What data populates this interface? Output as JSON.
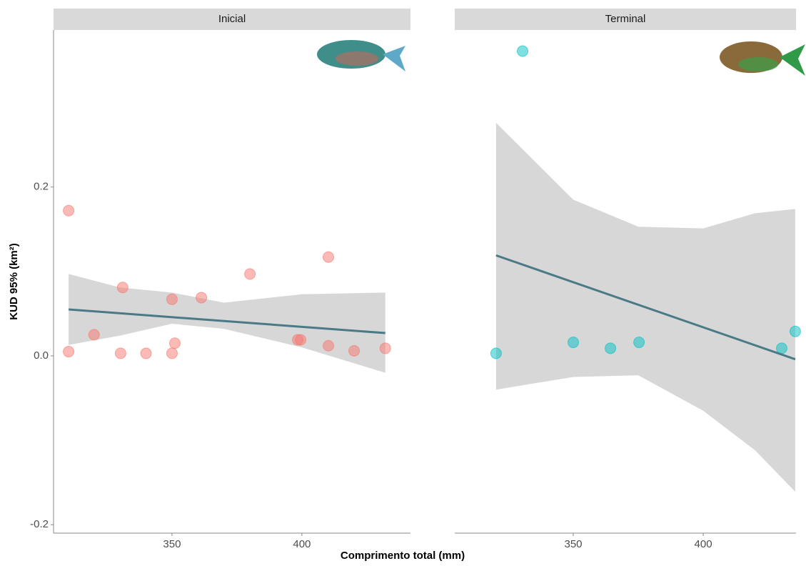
{
  "x_label": "Comprimento total (mm)",
  "y_label": "KUD 95% (km²)",
  "chart_data": [
    {
      "type": "scatter",
      "title": "Inicial",
      "color": "#f8766d",
      "x": [
        310.2,
        310.2,
        320,
        331,
        330.2,
        340,
        350,
        350,
        351.1,
        361.3,
        380,
        398.4,
        399.5,
        410.2,
        410.2,
        420.1,
        432.1
      ],
      "values": [
        0.172,
        0.005,
        0.025,
        0.081,
        0.003,
        0.003,
        0.067,
        0.003,
        0.015,
        0.069,
        0.097,
        0.019,
        0.019,
        0.117,
        0.012,
        0.006,
        0.009
      ],
      "fit": {
        "x": [
          310.2,
          432.1
        ],
        "y": [
          0.055,
          0.027
        ]
      },
      "band": {
        "x": [
          310.2,
          330,
          350,
          370,
          400,
          432.1
        ],
        "lower": [
          0.013,
          0.024,
          0.038,
          0.032,
          0.01,
          -0.02
        ],
        "upper": [
          0.097,
          0.081,
          0.075,
          0.063,
          0.073,
          0.075
        ]
      },
      "xlim": [
        304.4,
        441.8
      ],
      "ylim": [
        -0.21,
        0.386
      ],
      "xticks": [
        350,
        400
      ],
      "yticks": [
        -0.2,
        {
          "value": 0,
          "label": "0.0"
        },
        0.2
      ]
    },
    {
      "type": "scatter",
      "title": "Terminal",
      "color": "#00bfc4",
      "x": [
        320.3,
        330.5,
        350,
        364.3,
        375.3,
        430.2,
        435.4
      ],
      "values": [
        0.003,
        0.361,
        0.016,
        0.009,
        0.016,
        0.009,
        0.029
      ],
      "fit": {
        "x": [
          320.3,
          435.4
        ],
        "y": [
          0.119,
          -0.004
        ]
      },
      "band": {
        "x": [
          320.3,
          350,
          375,
          400,
          420,
          435.4
        ],
        "lower": [
          -0.04,
          -0.025,
          -0.023,
          -0.065,
          -0.112,
          -0.161
        ],
        "upper": [
          0.276,
          0.185,
          0.153,
          0.151,
          0.169,
          0.174
        ]
      },
      "xlim": [
        304.4,
        435.7
      ],
      "ylim": [
        -0.21,
        0.386
      ],
      "xticks": [
        350,
        400
      ]
    }
  ]
}
